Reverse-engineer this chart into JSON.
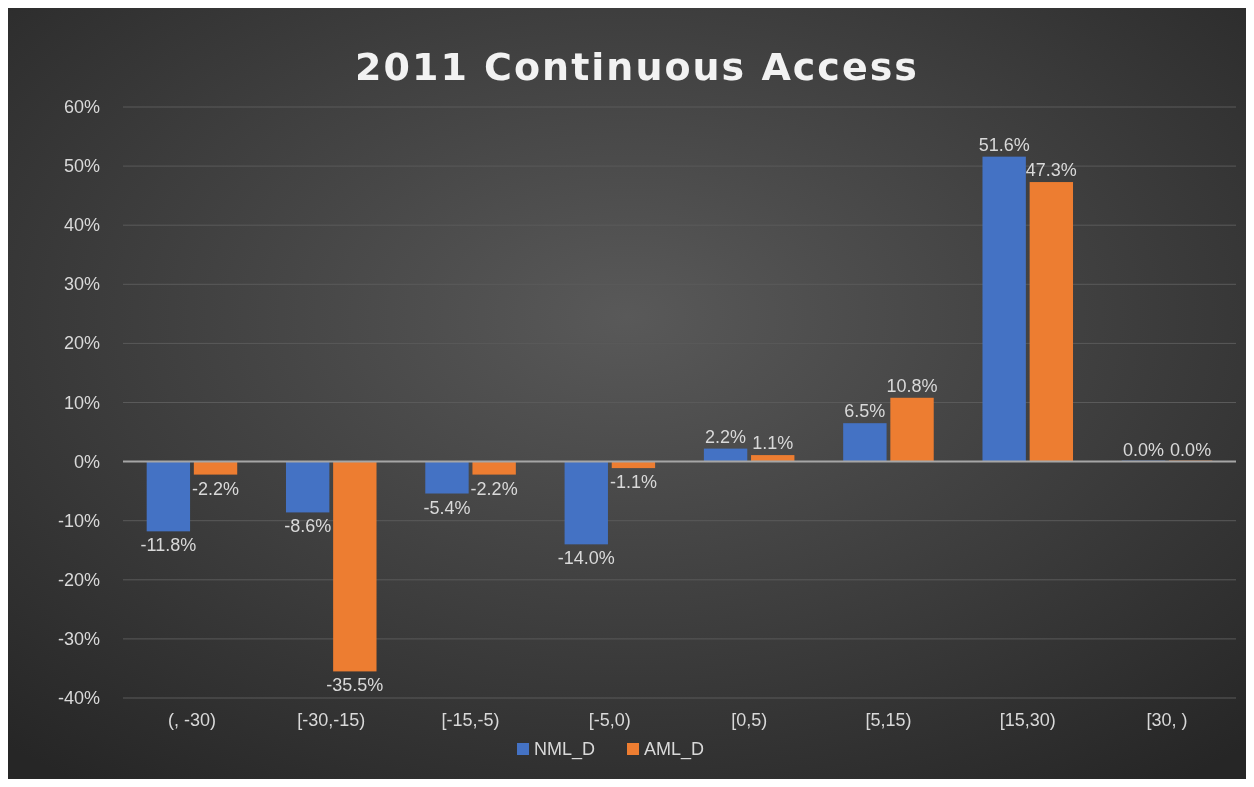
{
  "chart_data": {
    "type": "bar",
    "title": "2011 Continuous Access",
    "categories": [
      "(, -30)",
      "[-30,-15)",
      "[-15,-5)",
      "[-5,0)",
      "[0,5)",
      "[5,15)",
      "[15,30)",
      "[30, )"
    ],
    "series": [
      {
        "name": "NML_D",
        "color": "#4472c4",
        "values": [
          -11.8,
          -8.6,
          -5.4,
          -14.0,
          2.2,
          6.5,
          51.6,
          0.0
        ],
        "value_labels": [
          "-11.8%",
          "-8.6%",
          "-5.4%",
          "-14.0%",
          "2.2%",
          "6.5%",
          "51.6%",
          "0.0%"
        ]
      },
      {
        "name": "AML_D",
        "color": "#ed7d31",
        "values": [
          -2.2,
          -35.5,
          -2.2,
          -1.1,
          1.1,
          10.8,
          47.3,
          0.0
        ],
        "value_labels": [
          "-2.2%",
          "-35.5%",
          "-2.2%",
          "-1.1%",
          "1.1%",
          "10.8%",
          "47.3%",
          "0.0%"
        ]
      }
    ],
    "ylim": [
      -40,
      60
    ],
    "yticks": [
      {
        "value": -40,
        "label": "-40%"
      },
      {
        "value": -30,
        "label": "-30%"
      },
      {
        "value": -20,
        "label": "-20%"
      },
      {
        "value": -10,
        "label": "-10%"
      },
      {
        "value": 0,
        "label": "0%"
      },
      {
        "value": 10,
        "label": "10%"
      },
      {
        "value": 20,
        "label": "20%"
      },
      {
        "value": 30,
        "label": "30%"
      },
      {
        "value": 40,
        "label": "40%"
      },
      {
        "value": 50,
        "label": "50%"
      },
      {
        "value": 60,
        "label": "60%"
      }
    ],
    "grid": "y",
    "legend": "bottom"
  }
}
